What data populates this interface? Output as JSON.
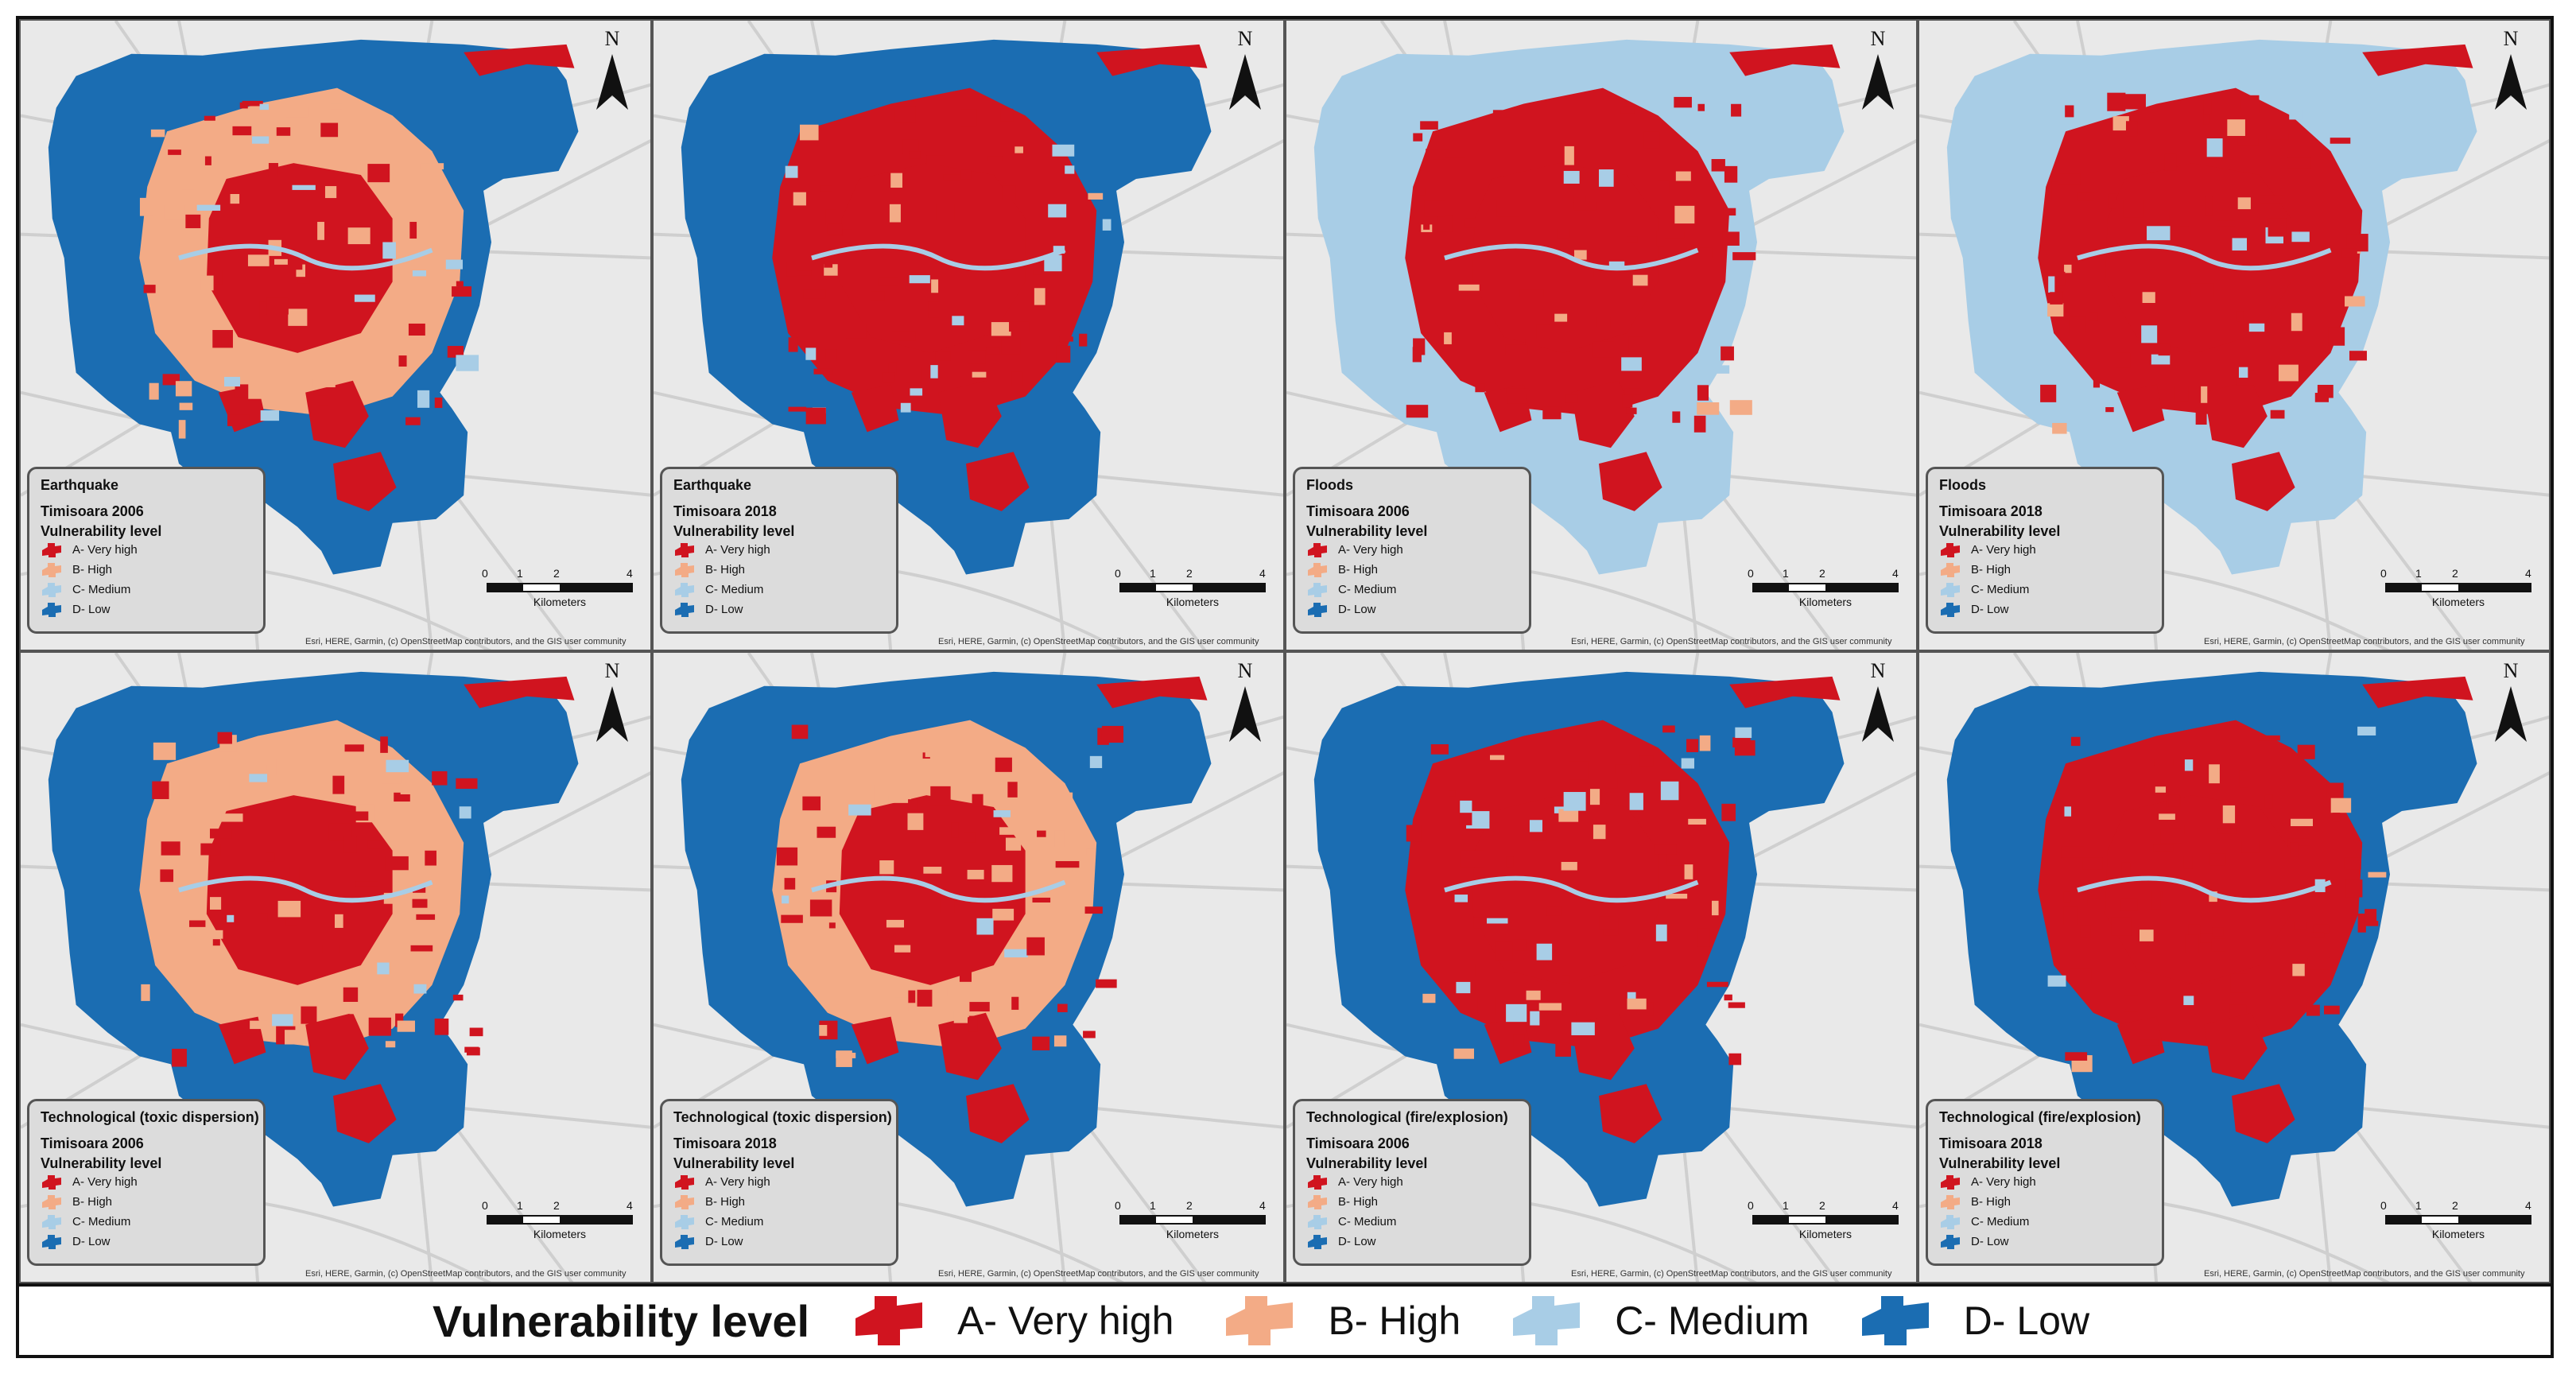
{
  "colors": {
    "very_high": "#d0141f",
    "high": "#f3ab86",
    "medium": "#a8cde6",
    "low": "#1b6db2",
    "basemap": "#e9e9e9",
    "roads": "#cfcfcf"
  },
  "icons": {
    "north_arrow": "north-arrow-icon",
    "legend_patch": "polygon-swatch-icon"
  },
  "common": {
    "vulnerability_level": "Vulnerability level",
    "north_label": "N",
    "scale_labels": [
      "0",
      "1",
      "2",
      "4"
    ],
    "scale_unit": "Kilometers",
    "attribution": "Esri, HERE, Garmin, (c) OpenStreetMap contributors, and the GIS user community"
  },
  "classes": [
    {
      "key": "very_high",
      "label": "A- Very high"
    },
    {
      "key": "high",
      "label": "B- High"
    },
    {
      "key": "medium",
      "label": "C- Medium"
    },
    {
      "key": "low",
      "label": "D- Low"
    }
  ],
  "panels": [
    {
      "hazard": "Earthquake",
      "year_label": "Timisoara 2006",
      "outer_class": "low",
      "ring_class": "high",
      "core_class": "very_high"
    },
    {
      "hazard": "Earthquake",
      "year_label": "Timisoara 2018",
      "outer_class": "low",
      "ring_class": "very_high",
      "core_class": "very_high"
    },
    {
      "hazard": "Floods",
      "year_label": "Timisoara 2006",
      "outer_class": "medium",
      "ring_class": "very_high",
      "core_class": "very_high"
    },
    {
      "hazard": "Floods",
      "year_label": "Timisoara 2018",
      "outer_class": "medium",
      "ring_class": "very_high",
      "core_class": "very_high"
    },
    {
      "hazard": "Technological (toxic dispersion)",
      "year_label": "Timisoara 2006",
      "outer_class": "low",
      "ring_class": "high",
      "core_class": "very_high"
    },
    {
      "hazard": "Technological (toxic dispersion)",
      "year_label": "Timisoara 2018",
      "outer_class": "low",
      "ring_class": "high",
      "core_class": "very_high"
    },
    {
      "hazard": "Technological (fire/explosion)",
      "year_label": "Timisoara 2006",
      "outer_class": "low",
      "ring_class": "very_high",
      "core_class": "very_high"
    },
    {
      "hazard": "Technological (fire/explosion)",
      "year_label": "Timisoara 2018",
      "outer_class": "low",
      "ring_class": "very_high",
      "core_class": "very_high"
    }
  ],
  "bottom_legend": {
    "title": "Vulnerability level",
    "items": [
      "A- Very high",
      "B- High",
      "C- Medium",
      "D- Low"
    ]
  }
}
